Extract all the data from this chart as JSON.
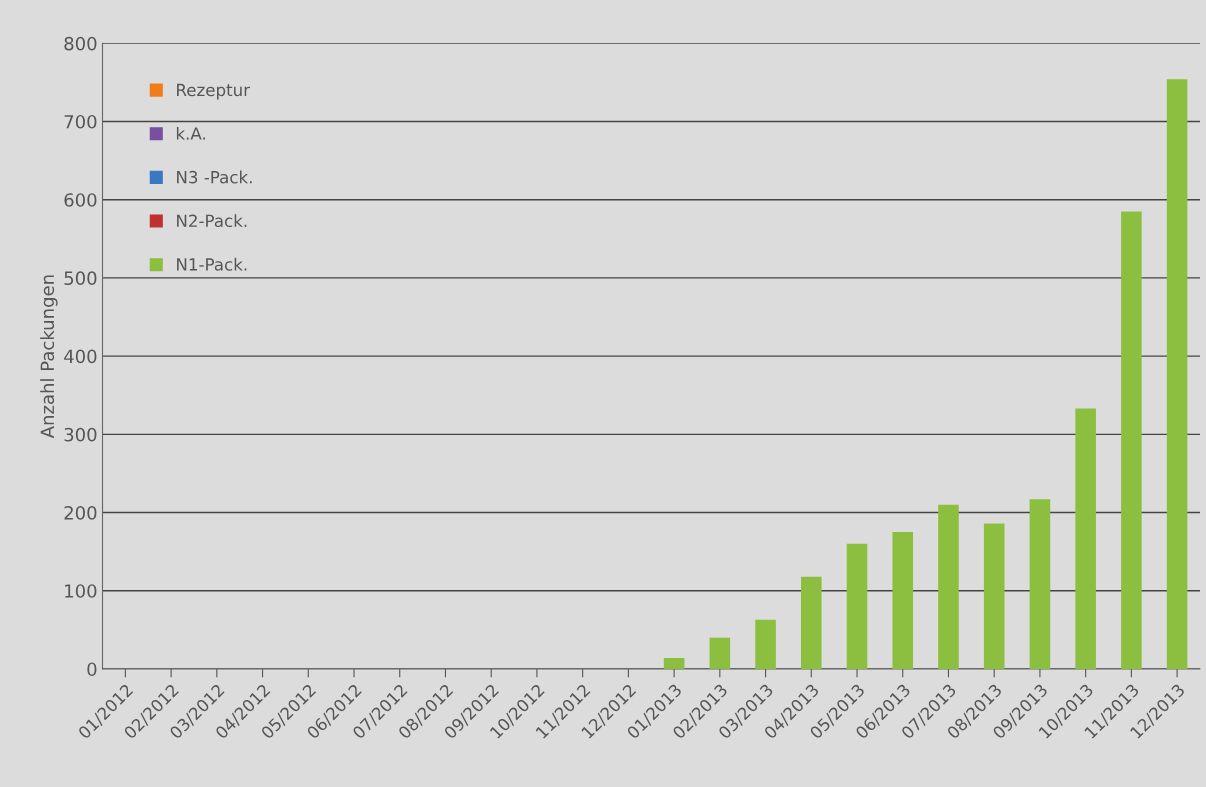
{
  "chart_data": {
    "type": "bar",
    "stacked": true,
    "ylabel": "Anzahl Packungen",
    "categories": [
      "01/2012",
      "02/2012",
      "03/2012",
      "04/2012",
      "05/2012",
      "06/2012",
      "07/2012",
      "08/2012",
      "09/2012",
      "10/2012",
      "11/2012",
      "12/2012",
      "01/2013",
      "02/2013",
      "03/2013",
      "04/2013",
      "05/2013",
      "06/2013",
      "07/2013",
      "08/2013",
      "09/2013",
      "10/2013",
      "11/2013",
      "12/2013"
    ],
    "series": [
      {
        "name": "N1-Pack.",
        "color": "#8cbf3f",
        "values": [
          0,
          0,
          0,
          0,
          0,
          0,
          0,
          0,
          0,
          0,
          0,
          0,
          14,
          40,
          63,
          118,
          160,
          175,
          210,
          186,
          217,
          333,
          585,
          754
        ]
      },
      {
        "name": "N2-Pack.",
        "color": "#c0312e",
        "values": [
          0,
          0,
          0,
          0,
          0,
          0,
          0,
          0,
          0,
          0,
          0,
          0,
          0,
          0,
          0,
          0,
          0,
          0,
          0,
          0,
          0,
          0,
          0,
          0
        ]
      },
      {
        "name": "N3 -Pack.",
        "color": "#3a78c3",
        "values": [
          0,
          0,
          0,
          0,
          0,
          0,
          0,
          0,
          0,
          0,
          0,
          0,
          0,
          0,
          0,
          0,
          0,
          0,
          0,
          0,
          0,
          0,
          0,
          0
        ]
      },
      {
        "name": "k.A.",
        "color": "#7a4fa0",
        "values": [
          0,
          0,
          0,
          0,
          0,
          0,
          0,
          0,
          0,
          0,
          0,
          0,
          0,
          0,
          0,
          0,
          0,
          0,
          0,
          0,
          0,
          0,
          0,
          0
        ]
      },
      {
        "name": "Rezeptur",
        "color": "#f07c1a",
        "values": [
          0,
          0,
          0,
          0,
          0,
          0,
          0,
          0,
          0,
          0,
          0,
          0,
          0,
          0,
          0,
          0,
          0,
          0,
          0,
          0,
          0,
          0,
          0,
          0
        ]
      }
    ],
    "ylim": [
      0,
      800
    ],
    "yticks": [
      0,
      100,
      200,
      300,
      400,
      500,
      600,
      700,
      800
    ],
    "grid": "y",
    "legend": "top left"
  }
}
